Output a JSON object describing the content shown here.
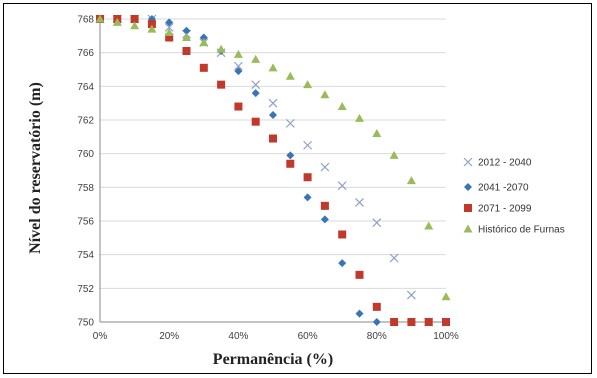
{
  "chart_data": {
    "type": "scatter",
    "title": "",
    "xlabel": "Permanência (%)",
    "ylabel": "Nível do reservatório (m)",
    "xlim": [
      0,
      100
    ],
    "ylim": [
      750,
      768
    ],
    "x_ticks": [
      "0%",
      "20%",
      "40%",
      "60%",
      "80%",
      "100%"
    ],
    "y_ticks": [
      "750",
      "752",
      "754",
      "756",
      "758",
      "760",
      "762",
      "764",
      "766",
      "768"
    ],
    "grid": true,
    "legend_position": "right",
    "series": [
      {
        "name": "2012 - 2040",
        "marker": "x",
        "color": "#8ea0c8",
        "points": [
          [
            0,
            768
          ],
          [
            5,
            768
          ],
          [
            10,
            768
          ],
          [
            15,
            768
          ],
          [
            20,
            767.5
          ],
          [
            25,
            767.1
          ],
          [
            30,
            766.6
          ],
          [
            35,
            766.0
          ],
          [
            40,
            765.2
          ],
          [
            45,
            764.1
          ],
          [
            50,
            763.0
          ],
          [
            55,
            761.8
          ],
          [
            60,
            760.5
          ],
          [
            65,
            759.2
          ],
          [
            70,
            758.1
          ],
          [
            75,
            757.1
          ],
          [
            80,
            755.9
          ],
          [
            85,
            753.8
          ],
          [
            90,
            751.6
          ],
          [
            95,
            750
          ],
          [
            100,
            750
          ]
        ]
      },
      {
        "name": "2041 -2070",
        "marker": "diamond",
        "color": "#3a74b8",
        "points": [
          [
            0,
            768
          ],
          [
            5,
            768
          ],
          [
            10,
            768
          ],
          [
            15,
            768
          ],
          [
            20,
            767.8
          ],
          [
            25,
            767.3
          ],
          [
            30,
            766.9
          ],
          [
            35,
            766.1
          ],
          [
            40,
            764.9
          ],
          [
            45,
            763.6
          ],
          [
            50,
            762.3
          ],
          [
            55,
            759.9
          ],
          [
            60,
            757.4
          ],
          [
            65,
            756.1
          ],
          [
            70,
            753.5
          ],
          [
            75,
            750.5
          ],
          [
            80,
            750
          ],
          [
            85,
            750
          ],
          [
            90,
            750
          ],
          [
            95,
            750
          ],
          [
            100,
            750
          ]
        ]
      },
      {
        "name": "2071 - 2099",
        "marker": "square",
        "color": "#c0392b",
        "points": [
          [
            0,
            768
          ],
          [
            5,
            768
          ],
          [
            10,
            768
          ],
          [
            15,
            767.7
          ],
          [
            20,
            766.9
          ],
          [
            25,
            766.1
          ],
          [
            30,
            765.1
          ],
          [
            35,
            764.1
          ],
          [
            40,
            762.8
          ],
          [
            45,
            761.9
          ],
          [
            50,
            760.9
          ],
          [
            55,
            759.4
          ],
          [
            60,
            758.6
          ],
          [
            65,
            756.9
          ],
          [
            70,
            755.2
          ],
          [
            75,
            752.8
          ],
          [
            80,
            750.9
          ],
          [
            85,
            750
          ],
          [
            90,
            750
          ],
          [
            95,
            750
          ],
          [
            100,
            750
          ]
        ]
      },
      {
        "name": "Histórico de Furnas",
        "marker": "triangle",
        "color": "#9bbb59",
        "points": [
          [
            0,
            768
          ],
          [
            5,
            767.8
          ],
          [
            10,
            767.6
          ],
          [
            15,
            767.4
          ],
          [
            20,
            767.2
          ],
          [
            25,
            766.9
          ],
          [
            30,
            766.6
          ],
          [
            35,
            766.2
          ],
          [
            40,
            765.9
          ],
          [
            45,
            765.6
          ],
          [
            50,
            765.1
          ],
          [
            55,
            764.6
          ],
          [
            60,
            764.1
          ],
          [
            65,
            763.5
          ],
          [
            70,
            762.8
          ],
          [
            75,
            762.1
          ],
          [
            80,
            761.2
          ],
          [
            85,
            759.9
          ],
          [
            90,
            758.4
          ],
          [
            95,
            755.7
          ],
          [
            100,
            751.5
          ]
        ]
      }
    ]
  }
}
